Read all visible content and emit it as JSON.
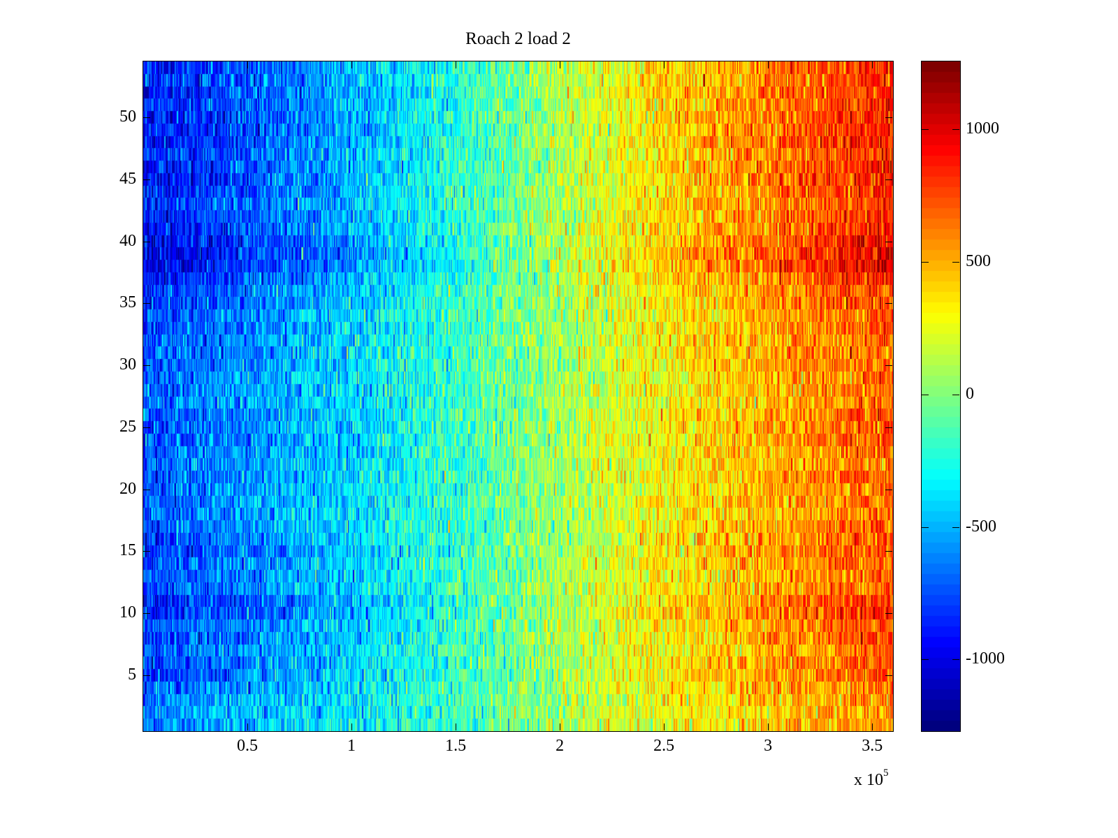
{
  "chart_data": {
    "type": "heatmap",
    "title": "Roach 2 load 2",
    "xlabel": "",
    "ylabel": "",
    "x_multiplier_label": "x 10",
    "x_multiplier_exponent": "5",
    "xlim": [
      0,
      360000
    ],
    "ylim": [
      0.5,
      54.5
    ],
    "rows": 54,
    "columns": 720,
    "x_ticks": [
      50000,
      100000,
      150000,
      200000,
      250000,
      300000,
      350000
    ],
    "x_tick_labels": [
      "0.5",
      "1",
      "1.5",
      "2",
      "2.5",
      "3",
      "3.5"
    ],
    "y_ticks": [
      5,
      10,
      15,
      20,
      25,
      30,
      35,
      40,
      45,
      50
    ],
    "y_tick_labels": [
      "5",
      "10",
      "15",
      "20",
      "25",
      "30",
      "35",
      "40",
      "45",
      "50"
    ],
    "colormap": "jet",
    "colormap_levels": 64,
    "clim": [
      -1270,
      1255
    ],
    "colorbar_ticks": [
      -1000,
      -500,
      0,
      500,
      1000
    ],
    "colorbar_tick_labels": [
      "-1000",
      "-500",
      "0",
      "500",
      "1000"
    ],
    "trend_x": [
      0,
      50000,
      100000,
      150000,
      200000,
      250000,
      300000,
      360000
    ],
    "trend_value": [
      -780,
      -620,
      -430,
      -200,
      80,
      330,
      520,
      740
    ],
    "row_scale": [
      0.8,
      0.8,
      0.85,
      0.9,
      1.05,
      1.0,
      0.95,
      1.05,
      1.0,
      1.15,
      1.15,
      1.0,
      0.95,
      1.0,
      1.05,
      1.0,
      0.95,
      0.9,
      0.9,
      0.9,
      0.95,
      0.9,
      0.95,
      1.0,
      1.0,
      0.95,
      0.9,
      0.9,
      0.9,
      0.95,
      0.95,
      0.95,
      1.0,
      1.0,
      1.05,
      1.1,
      1.2,
      1.35,
      1.35,
      1.3,
      1.2,
      1.15,
      1.1,
      1.15,
      1.2,
      1.2,
      1.15,
      1.2,
      1.2,
      1.2,
      1.15,
      1.2,
      1.15,
      1.2
    ],
    "noise_std": 170,
    "grid": false,
    "legend": "colorbar-right"
  }
}
